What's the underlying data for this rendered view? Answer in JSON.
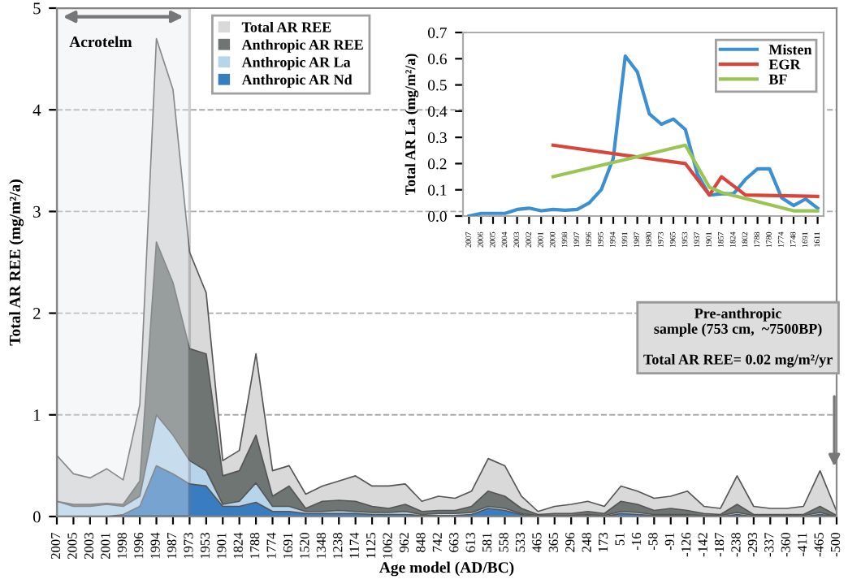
{
  "chart_data": [
    {
      "type": "area",
      "xlabel": "Age model (AD/BC)",
      "ylabel": "Total AR REE (mg/m²/a)",
      "categories": [
        "2007",
        "2005",
        "2003",
        "2001",
        "1998",
        "1996",
        "1994",
        "1987",
        "1973",
        "1953",
        "1901",
        "1824",
        "1788",
        "1774",
        "1691",
        "1520",
        "1348",
        "1238",
        "1174",
        "1125",
        "1062",
        "962",
        "848",
        "742",
        "663",
        "613",
        "581",
        "558",
        "533",
        "465",
        "365",
        "296",
        "248",
        "173",
        "51",
        "-16",
        "-58",
        "-91",
        "-126",
        "-142",
        "-187",
        "-238",
        "-293",
        "-337",
        "-360",
        "-411",
        "-465",
        "-500"
      ],
      "series": [
        {
          "name": "Total AR REE",
          "color": "#d9d9d9",
          "values": [
            0.6,
            0.42,
            0.38,
            0.47,
            0.36,
            1.1,
            4.7,
            4.2,
            2.6,
            2.2,
            0.55,
            0.65,
            1.6,
            0.45,
            0.5,
            0.22,
            0.3,
            0.35,
            0.4,
            0.3,
            0.3,
            0.32,
            0.15,
            0.2,
            0.18,
            0.25,
            0.57,
            0.5,
            0.2,
            0.05,
            0.1,
            0.12,
            0.15,
            0.1,
            0.3,
            0.25,
            0.18,
            0.2,
            0.25,
            0.1,
            0.08,
            0.4,
            0.1,
            0.08,
            0.08,
            0.1,
            0.45,
            0.05
          ]
        },
        {
          "name": "Anthropic AR REE",
          "color": "#6e7573",
          "values": [
            0.15,
            0.12,
            0.12,
            0.13,
            0.12,
            0.35,
            2.7,
            2.3,
            1.65,
            1.6,
            0.4,
            0.45,
            0.8,
            0.2,
            0.3,
            0.08,
            0.15,
            0.16,
            0.15,
            0.1,
            0.08,
            0.12,
            0.05,
            0.06,
            0.06,
            0.1,
            0.25,
            0.2,
            0.08,
            0.02,
            0.03,
            0.03,
            0.05,
            0.03,
            0.15,
            0.12,
            0.06,
            0.08,
            0.06,
            0.03,
            0.02,
            0.12,
            0.02,
            0.02,
            0.02,
            0.02,
            0.1,
            0.01
          ]
        },
        {
          "name": "Anthropic AR La",
          "color": "#b7d5ea",
          "values": [
            0.15,
            0.1,
            0.1,
            0.12,
            0.1,
            0.2,
            1.0,
            0.8,
            0.55,
            0.45,
            0.12,
            0.15,
            0.33,
            0.1,
            0.1,
            0.05,
            0.05,
            0.06,
            0.05,
            0.04,
            0.04,
            0.05,
            0.02,
            0.03,
            0.03,
            0.04,
            0.1,
            0.08,
            0.03,
            0.01,
            0.01,
            0.01,
            0.02,
            0.01,
            0.05,
            0.04,
            0.02,
            0.02,
            0.02,
            0.01,
            0.01,
            0.04,
            0.01,
            0.01,
            0.01,
            0.01,
            0.04,
            0.0
          ]
        },
        {
          "name": "Anthropic AR Nd",
          "color": "#3a7cc0",
          "values": [
            0.0,
            0.0,
            0.0,
            0.0,
            0.02,
            0.1,
            0.5,
            0.42,
            0.32,
            0.3,
            0.1,
            0.1,
            0.14,
            0.05,
            0.05,
            0.03,
            0.03,
            0.03,
            0.03,
            0.02,
            0.02,
            0.02,
            0.01,
            0.01,
            0.01,
            0.02,
            0.08,
            0.06,
            0.02,
            0.0,
            0.0,
            0.0,
            0.01,
            0.0,
            0.03,
            0.02,
            0.01,
            0.01,
            0.01,
            0.0,
            0.0,
            0.02,
            0.0,
            0.0,
            0.0,
            0.0,
            0.02,
            0.0
          ]
        }
      ],
      "ylim": [
        0,
        5
      ],
      "yticks": [
        0,
        1,
        2,
        3,
        4,
        5
      ],
      "grid": "y",
      "legend": "top left",
      "bands": [
        {
          "axis": "x",
          "from": "2007",
          "to": "1973",
          "label": "Acrotelm",
          "color": "#e6ebf0"
        }
      ],
      "annotations": [
        "Pre-anthropic\nsample (753 cm,  ~7500BP)\n\nTotal AR REE= 0.02 mg/m²/yr"
      ]
    },
    {
      "type": "line",
      "ylabel": "Total AR La (mg/m²/a)",
      "categories": [
        "2007",
        "2006",
        "2005",
        "2004",
        "2003",
        "2002",
        "2001",
        "2000",
        "1998",
        "1997",
        "1996",
        "1995",
        "1994",
        "1991",
        "1987",
        "1980",
        "1973",
        "1965",
        "1953",
        "1937",
        "1901",
        "1857",
        "1824",
        "1802",
        "1788",
        "1780",
        "1774",
        "1748",
        "1691",
        "1611"
      ],
      "series": [
        {
          "name": "Misten",
          "color": "#3c8fd0",
          "values": [
            0.0,
            0.01,
            0.01,
            0.01,
            0.025,
            0.03,
            0.02,
            0.025,
            0.022,
            0.025,
            0.05,
            0.1,
            0.22,
            0.61,
            0.55,
            0.39,
            0.35,
            0.37,
            0.33,
            0.16,
            0.08,
            0.085,
            0.085,
            0.14,
            0.18,
            0.18,
            0.07,
            0.04,
            0.065,
            0.03
          ]
        },
        {
          "name": "EGR",
          "color": "#d9453a",
          "values": [
            null,
            null,
            null,
            null,
            null,
            null,
            null,
            0.27,
            null,
            null,
            null,
            null,
            null,
            null,
            null,
            null,
            null,
            null,
            0.2,
            null,
            0.08,
            0.15,
            null,
            0.08,
            null,
            null,
            null,
            null,
            null,
            0.075
          ]
        },
        {
          "name": "BF",
          "color": "#9ac455",
          "values": [
            null,
            null,
            null,
            null,
            null,
            null,
            null,
            0.15,
            null,
            null,
            null,
            null,
            null,
            null,
            null,
            null,
            null,
            null,
            0.27,
            null,
            0.11,
            0.09,
            null,
            null,
            null,
            null,
            null,
            0.02,
            null,
            0.02
          ]
        }
      ],
      "ylim": [
        0,
        0.7
      ],
      "yticks": [
        {
          "value": 0,
          "label": "0.0"
        },
        0.1,
        0.2,
        0.3,
        0.4,
        0.5,
        0.6,
        0.7
      ],
      "legend": "top right"
    }
  ]
}
